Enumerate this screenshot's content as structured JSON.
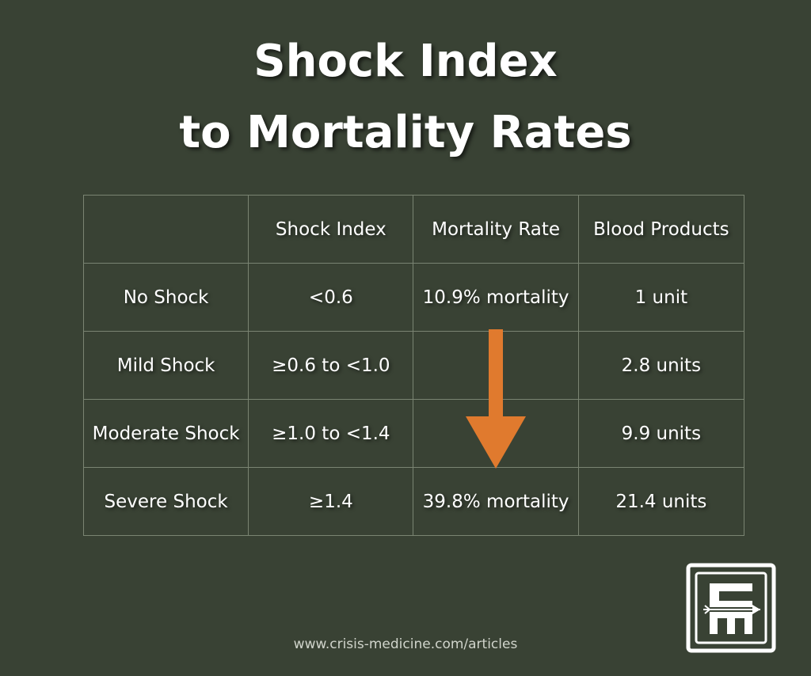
{
  "title": {
    "line1": "Shock Index",
    "line2": "to Mortality Rates"
  },
  "table": {
    "headers": [
      "",
      "Shock Index",
      "Mortality Rate",
      "Blood Products"
    ],
    "rows": [
      {
        "category": "No Shock",
        "shock_index": "<0.6",
        "mortality": "10.9% mortality",
        "blood_products": "1 unit"
      },
      {
        "category": "Mild Shock",
        "shock_index": "≥0.6 to <1.0",
        "mortality": "",
        "blood_products": "2.8 units"
      },
      {
        "category": "Moderate Shock",
        "shock_index": "≥1.0 to <1.4",
        "mortality": "",
        "blood_products": "9.9 units"
      },
      {
        "category": "Severe Shock",
        "shock_index": "≥1.4",
        "mortality": "39.8% mortality",
        "blood_products": "21.4 units"
      }
    ]
  },
  "arrow_color": "#e07a2e",
  "footer": {
    "url": "www.crisis-medicine.com/articles"
  },
  "logo": {
    "text": "CM",
    "icon": "crisis-medicine-logo"
  }
}
